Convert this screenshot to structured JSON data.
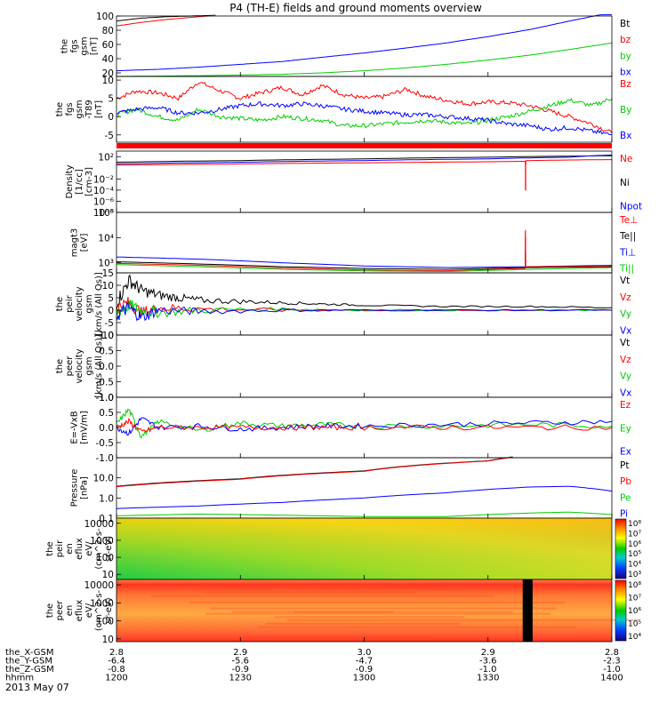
{
  "title": "P4 (TH-E) fields and ground moments overview",
  "date_label": "2013 May 07",
  "axis_rows": [
    {
      "name": "the_X-GSM",
      "values": [
        "2.8",
        "2.9",
        "3.0",
        "2.9",
        "2.8"
      ]
    },
    {
      "name": "the_Y-GSM",
      "values": [
        "-6.4",
        "-5.6",
        "-4.7",
        "-3.6",
        "-2.3"
      ]
    },
    {
      "name": "the_Z-GSM",
      "values": [
        "-0.8",
        "-0.9",
        "-0.9",
        "-1.0",
        "-1.0"
      ]
    },
    {
      "name": "hhmm",
      "values": [
        "1200",
        "1230",
        "1300",
        "1330",
        "1400"
      ]
    }
  ],
  "colors": {
    "black": "#000000",
    "red": "#ff0000",
    "green": "#00cc00",
    "blue": "#0000ff"
  },
  "chart_data": [
    {
      "type": "line",
      "ylabel": [
        "the",
        "fgs",
        "gsm",
        "[nT]"
      ],
      "ylim": [
        15,
        100
      ],
      "yticks": [
        "20",
        "40",
        "60",
        "80",
        "100"
      ],
      "tick_values": [
        20,
        40,
        60,
        80,
        100
      ],
      "legend": [
        "Bt",
        "bz",
        "by",
        "bx"
      ],
      "legend_colors": [
        "#000000",
        "#ff0000",
        "#00cc00",
        "#0000ff"
      ],
      "series": [
        {
          "name": "Bt",
          "color": "#000000",
          "x": [
            12.0,
            12.1,
            12.2,
            12.3,
            12.4
          ],
          "y": [
            93,
            97,
            99,
            100,
            101
          ]
        },
        {
          "name": "bz",
          "color": "#ff0000",
          "x": [
            12.0,
            12.1,
            12.2,
            12.3,
            12.4
          ],
          "y": [
            86,
            91,
            95,
            98,
            101
          ]
        },
        {
          "name": "bx",
          "color": "#0000ff",
          "x": [
            12.0,
            12.17,
            12.33,
            12.5,
            12.67,
            12.83,
            13.0,
            13.17,
            13.33,
            13.5,
            13.67,
            13.83,
            14.0
          ],
          "y": [
            23,
            25,
            28,
            32,
            36,
            42,
            48,
            55,
            62,
            71,
            81,
            93,
            105
          ]
        },
        {
          "name": "by",
          "color": "#00cc00",
          "x": [
            12.0,
            12.17,
            12.33,
            12.5,
            12.67,
            12.83,
            13.0,
            13.17,
            13.33,
            13.5,
            13.67,
            13.83,
            14.0
          ],
          "y": [
            15,
            15.5,
            16,
            17,
            18,
            20,
            23,
            27,
            32,
            38,
            45,
            53,
            62
          ]
        }
      ]
    },
    {
      "type": "line",
      "ylabel": [
        "the",
        "fgs",
        "gsm",
        "-T89",
        "[nT]"
      ],
      "ylim": [
        -7,
        11
      ],
      "yticks": [
        "-5",
        "0",
        "5",
        "10"
      ],
      "tick_values": [
        -5,
        0,
        5,
        10
      ],
      "legend": [
        "Bz",
        "By",
        "Bx"
      ],
      "legend_colors": [
        "#ff0000",
        "#00cc00",
        "#0000ff"
      ],
      "flag_bar": true,
      "series": [
        {
          "name": "Bz",
          "color": "#ff0000",
          "x": [
            12.0,
            12.08,
            12.17,
            12.25,
            12.33,
            12.42,
            12.5,
            12.58,
            12.67,
            12.75,
            12.83,
            12.92,
            13.0,
            13.08,
            13.17,
            13.25,
            13.33,
            13.42,
            13.5,
            13.58,
            13.67,
            13.75,
            13.83,
            13.92,
            14.0
          ],
          "y": [
            5,
            7,
            6.5,
            5,
            9.5,
            7,
            5,
            6.5,
            8,
            6,
            8.5,
            6,
            5,
            5.5,
            7.5,
            5.5,
            4.5,
            3.5,
            4,
            3.8,
            3,
            1.5,
            0,
            -2,
            -4.5
          ]
        },
        {
          "name": "By",
          "color": "#00cc00",
          "x": [
            12.0,
            12.08,
            12.17,
            12.25,
            12.33,
            12.42,
            12.5,
            12.58,
            12.67,
            12.75,
            12.83,
            12.92,
            13.0,
            13.08,
            13.17,
            13.25,
            13.33,
            13.42,
            13.5,
            13.58,
            13.67,
            13.75,
            13.83,
            13.92,
            14.0
          ],
          "y": [
            0.5,
            2,
            0,
            -1,
            2,
            0,
            -0.5,
            -1,
            0,
            -0.5,
            -1,
            -2.5,
            -2.5,
            -2,
            -1.5,
            -1,
            -1.5,
            -2,
            -1,
            0,
            1.5,
            3,
            4.5,
            3,
            5
          ]
        },
        {
          "name": "Bx",
          "color": "#0000ff",
          "x": [
            12.0,
            12.08,
            12.17,
            12.25,
            12.33,
            12.42,
            12.5,
            12.58,
            12.67,
            12.75,
            12.83,
            12.92,
            13.0,
            13.08,
            13.17,
            13.25,
            13.33,
            13.42,
            13.5,
            13.58,
            13.67,
            13.75,
            13.83,
            13.92,
            14.0
          ],
          "y": [
            1,
            2,
            2.5,
            1,
            1,
            2,
            3,
            3.5,
            3,
            3.5,
            3,
            2,
            1.5,
            1,
            0.5,
            0.5,
            0,
            -0.5,
            -1,
            -2,
            -2.5,
            -3.5,
            -3,
            -4,
            -5
          ]
        }
      ]
    },
    {
      "type": "line",
      "yscale": "log",
      "ylabel": [
        "Density",
        "[1/cc]",
        "[cm-3]"
      ],
      "ylim": [
        1e-08,
        1000
      ],
      "yticks": [
        "10²",
        "10⁻²",
        "10⁻⁴",
        "10⁻⁶",
        "10⁻⁸"
      ],
      "tick_values": [
        100,
        0.01,
        0.0001,
        1e-06,
        1e-08
      ],
      "legend": [
        "Ne",
        "Ni",
        "Npot"
      ],
      "legend_colors": [
        "#ff0000",
        "#000000",
        "#0000ff"
      ],
      "series": [
        {
          "name": "Ni",
          "color": "#000000",
          "x": [
            12.0,
            12.5,
            13.0,
            13.5,
            14.0
          ],
          "y": [
            10,
            20,
            40,
            80,
            150
          ]
        },
        {
          "name": "Npot",
          "color": "#0000ff",
          "x": [
            12.0,
            12.5,
            13.0,
            13.5,
            13.83,
            14.0
          ],
          "y": [
            5,
            10,
            20,
            40,
            80,
            200
          ]
        },
        {
          "name": "Ne",
          "color": "#ff0000",
          "x": [
            12.0,
            12.5,
            13.0,
            13.5,
            13.65,
            13.651,
            13.652,
            13.653,
            14.0
          ],
          "y": [
            3,
            5,
            8,
            12,
            15,
            0.0001,
            0.0001,
            20,
            30
          ]
        }
      ]
    },
    {
      "type": "line",
      "yscale": "log",
      "ylabel": [
        "magt3",
        "[eV]"
      ],
      "ylim": [
        400,
        100000
      ],
      "yticks": [
        "10⁵",
        "10⁴",
        "10³"
      ],
      "tick_values": [
        100000,
        10000,
        1000
      ],
      "legend": [
        "Te⊥",
        "Te||",
        "Ti⊥",
        "Ti||"
      ],
      "legend_colors": [
        "#ff0000",
        "#000000",
        "#0000ff",
        "#00cc00"
      ],
      "series": [
        {
          "name": "Ti⊥",
          "color": "#0000ff",
          "x": [
            12.0,
            12.33,
            12.67,
            13.0,
            13.33,
            13.67,
            14.0
          ],
          "y": [
            1700,
            1400,
            1000,
            750,
            650,
            700,
            800
          ]
        },
        {
          "name": "Te||",
          "color": "#000000",
          "x": [
            12.0,
            12.33,
            12.67,
            13.0,
            13.33,
            13.67,
            14.0
          ],
          "y": [
            1100,
            900,
            700,
            600,
            550,
            650,
            700
          ]
        },
        {
          "name": "Te⊥",
          "color": "#ff0000",
          "x": [
            12.0,
            12.33,
            12.67,
            13.0,
            13.33,
            13.65,
            13.651,
            13.652,
            14.0
          ],
          "y": [
            950,
            800,
            620,
            520,
            480,
            600,
            20000,
            700,
            750
          ]
        },
        {
          "name": "Ti||",
          "color": "#00cc00",
          "x": [
            12.0,
            12.33,
            12.67,
            13.0,
            13.33,
            13.67,
            14.0
          ],
          "y": [
            850,
            700,
            550,
            480,
            450,
            550,
            650
          ]
        }
      ]
    },
    {
      "type": "line",
      "ylabel": [
        "the",
        "peir",
        "velocity",
        "gsm",
        "[km/s (All Qs)]"
      ],
      "ylim": [
        -10,
        15
      ],
      "yticks": [
        "15",
        "10",
        "5",
        "0",
        "-5",
        "-10"
      ],
      "tick_values": [
        15,
        10,
        5,
        0,
        -5,
        -10
      ],
      "legend": [
        "Vt",
        "Vz",
        "Vy",
        "Vx"
      ],
      "legend_colors": [
        "#000000",
        "#ff0000",
        "#00cc00",
        "#0000ff"
      ],
      "series": [
        {
          "name": "Vt",
          "color": "#000000",
          "x": [
            12.0,
            12.05,
            12.1,
            12.17,
            12.25,
            12.33,
            12.5,
            12.67,
            12.83,
            13.0,
            13.33,
            13.67,
            14.0
          ],
          "y": [
            3,
            12,
            8,
            6,
            5,
            4,
            3.5,
            3,
            2.5,
            2,
            1.5,
            1.5,
            1
          ]
        },
        {
          "name": "Vz",
          "color": "#ff0000",
          "x": [
            12.0,
            12.05,
            12.1,
            12.17,
            12.33,
            12.67,
            13.0,
            13.5,
            14.0
          ],
          "y": [
            1,
            3,
            -1,
            1,
            0.5,
            0,
            0,
            0,
            0
          ]
        },
        {
          "name": "Vy",
          "color": "#00cc00",
          "x": [
            12.0,
            12.05,
            12.1,
            12.17,
            12.33,
            12.67,
            13.0,
            13.5,
            14.0
          ],
          "y": [
            -1,
            2,
            0,
            -1,
            0,
            0.5,
            0,
            0,
            0
          ]
        },
        {
          "name": "Vx",
          "color": "#0000ff",
          "x": [
            12.0,
            12.05,
            12.1,
            12.17,
            12.33,
            12.67,
            13.0,
            13.5,
            14.0
          ],
          "y": [
            -2,
            1,
            -3,
            0,
            -0.5,
            0,
            0,
            0,
            0
          ]
        }
      ]
    },
    {
      "type": "line",
      "ylabel": [
        "the",
        "peer",
        "velocity",
        "gsm",
        "[km/s (All Qs)]"
      ],
      "ylim": [
        -1,
        1
      ],
      "yticks": [
        "1.0",
        "0.5",
        "0.0",
        "-0.5",
        "-1.0"
      ],
      "tick_values": [
        1,
        0.5,
        0,
        -0.5,
        -1
      ],
      "legend": [
        "Vt",
        "Vz",
        "Vy",
        "Vx"
      ],
      "legend_colors": [
        "#000000",
        "#ff0000",
        "#00cc00",
        "#0000ff"
      ],
      "series": []
    },
    {
      "type": "line",
      "ylabel": [
        "E=-VxB",
        "[mV/m]"
      ],
      "ylim": [
        -1,
        1
      ],
      "yticks": [
        "1.0",
        "0.5",
        "0.0",
        "-0.5",
        "-1.0"
      ],
      "tick_values": [
        1,
        0.5,
        0,
        -0.5,
        -1
      ],
      "legend": [
        "Ez",
        "Ey",
        "Ex"
      ],
      "legend_colors": [
        "#ff0000",
        "#00cc00",
        "#0000ff"
      ],
      "series": [
        {
          "name": "Ey",
          "color": "#00cc00",
          "x": [
            12.0,
            12.05,
            12.1,
            12.17,
            12.33,
            12.5,
            12.67,
            12.83,
            13.0,
            13.33,
            13.67,
            14.0
          ],
          "y": [
            0.1,
            0.6,
            -0.3,
            0.2,
            -0.1,
            0.15,
            0.05,
            0.1,
            0.05,
            0.05,
            0.1,
            0.05
          ]
        },
        {
          "name": "Ex",
          "color": "#0000ff",
          "x": [
            12.0,
            12.05,
            12.1,
            12.17,
            12.33,
            12.5,
            12.67,
            12.83,
            13.0,
            13.33,
            13.67,
            14.0
          ],
          "y": [
            0,
            -0.2,
            0.3,
            0,
            0.05,
            -0.05,
            0,
            0.05,
            0.05,
            0.1,
            0.15,
            0.2
          ]
        },
        {
          "name": "Ez",
          "color": "#ff0000",
          "x": [
            12.0,
            12.05,
            12.1,
            12.17,
            12.33,
            12.5,
            12.67,
            12.83,
            13.0,
            13.33,
            13.67,
            14.0
          ],
          "y": [
            0,
            0.2,
            -0.15,
            0,
            0,
            0,
            0,
            0,
            0,
            0,
            0,
            0
          ]
        }
      ]
    },
    {
      "type": "line",
      "yscale": "log",
      "ylabel": [
        "Pressure",
        "[nPa]"
      ],
      "ylim": [
        0.1,
        100
      ],
      "yticks": [
        "10.0",
        "1.0",
        "0.1"
      ],
      "tick_values": [
        10,
        1,
        0.1
      ],
      "legend": [
        "Pt",
        "Pb",
        "Pe",
        "Pi"
      ],
      "legend_colors": [
        "#000000",
        "#ff0000",
        "#00cc00",
        "#0000ff"
      ],
      "series": [
        {
          "name": "Pt",
          "color": "#000000",
          "x": [
            12.0,
            12.5,
            13.0,
            13.5,
            13.6
          ],
          "y": [
            3.8,
            9,
            22,
            70,
            110
          ]
        },
        {
          "name": "Pb",
          "color": "#ff0000",
          "x": [
            12.0,
            12.5,
            13.0,
            13.5,
            13.6
          ],
          "y": [
            3.6,
            8.5,
            21,
            68,
            105
          ]
        },
        {
          "name": "Pi",
          "color": "#0000ff",
          "x": [
            12.0,
            12.33,
            12.67,
            13.0,
            13.33,
            13.67,
            13.83,
            14.0
          ],
          "y": [
            0.3,
            0.4,
            0.6,
            1,
            1.8,
            3.5,
            3.8,
            2.2
          ]
        },
        {
          "name": "Pe",
          "color": "#00cc00",
          "x": [
            12.0,
            12.33,
            12.67,
            13.0,
            13.33,
            13.67,
            13.83,
            14.0
          ],
          "y": [
            0.13,
            0.16,
            0.14,
            0.12,
            0.12,
            0.18,
            0.2,
            0.15
          ]
        }
      ]
    },
    {
      "type": "heatmap",
      "yscale": "log",
      "ylabel": [
        "the",
        "peir",
        "en",
        "eflux",
        "eV/",
        "(cm^2-s-",
        "sr-eV)"
      ],
      "ylim": [
        5,
        20000
      ],
      "yticks": [
        "10000",
        "1000",
        "100",
        "10"
      ],
      "tick_values": [
        10000,
        1000,
        100,
        10
      ],
      "colorbar_ticks": [
        "10⁸",
        "10⁷",
        "10⁶",
        "10⁵",
        "10⁴",
        "10³"
      ],
      "x": [
        12.0,
        12.5,
        13.0,
        13.5,
        14.0
      ],
      "z_description_levels": {
        "low_energy_start": 4.5,
        "high_energy_end": 7.5
      }
    },
    {
      "type": "heatmap",
      "yscale": "log",
      "ylabel": [
        "the",
        "peer",
        "en",
        "eflux",
        "eV/",
        "(cm^2-s-",
        "sr-eV)"
      ],
      "ylim": [
        7,
        20000
      ],
      "yticks": [
        "10000",
        "1000",
        "100",
        "10"
      ],
      "tick_values": [
        10000,
        1000,
        100,
        10
      ],
      "colorbar_ticks": [
        "10⁸",
        "10⁷",
        "10⁶",
        "10⁵",
        "10⁴"
      ],
      "x": [
        12.0,
        12.5,
        13.0,
        13.5,
        14.0
      ],
      "gap_x": [
        13.64,
        13.68
      ]
    }
  ]
}
